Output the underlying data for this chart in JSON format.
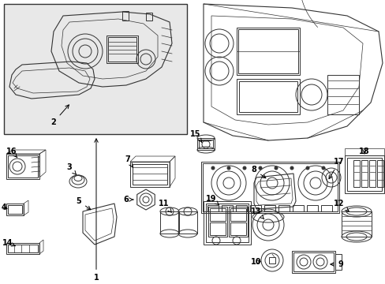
{
  "bg_color": "#ffffff",
  "line_color": "#333333",
  "box_bg": "#e0e0e0",
  "fig_width": 4.89,
  "fig_height": 3.6,
  "dpi": 100
}
